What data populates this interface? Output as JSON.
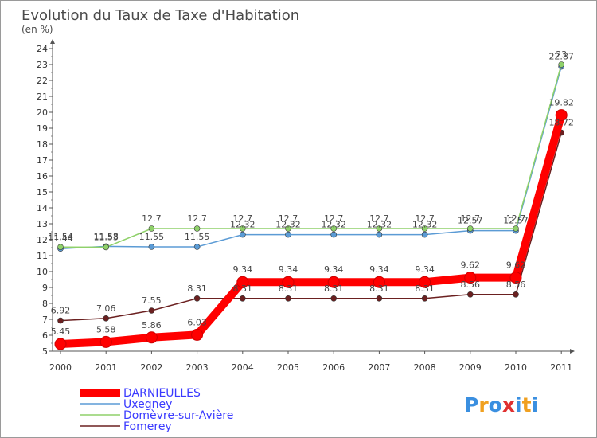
{
  "chart_data": {
    "type": "line",
    "title": "Evolution du Taux de Taxe d'Habitation",
    "subtitle": "(en %)",
    "xlabel": "",
    "ylabel": "",
    "ylim": [
      5,
      24
    ],
    "yticks": [
      5,
      6,
      7,
      8,
      9,
      10,
      11,
      12,
      13,
      14,
      15,
      16,
      17,
      18,
      19,
      20,
      21,
      22,
      23,
      24
    ],
    "grid": false,
    "legend_position": "bottom-left",
    "x": [
      "2000",
      "2001",
      "2002",
      "2003",
      "2004",
      "2005",
      "2006",
      "2007",
      "2008",
      "2009",
      "2010",
      "2011"
    ],
    "series": [
      {
        "name": "Fomerey",
        "color": "#6b2020",
        "values": [
          6.92,
          7.06,
          7.55,
          8.31,
          8.31,
          8.31,
          8.31,
          8.31,
          8.31,
          8.56,
          8.56,
          18.72
        ],
        "labels": [
          "6.92",
          "7.06",
          "7.55",
          "8.31",
          "8.31",
          "8.31",
          "8.31",
          "8.31",
          "8.31",
          "8.56",
          "8.56",
          "18.72"
        ]
      },
      {
        "name": "Uxegney",
        "color": "#5b9bd5",
        "values": [
          11.44,
          11.58,
          11.55,
          11.55,
          12.32,
          12.32,
          12.32,
          12.32,
          12.32,
          12.57,
          12.57,
          22.87
        ],
        "labels": [
          "11.44",
          "11.58",
          "11.55",
          "11.55",
          "12.32",
          "12.32",
          "12.32",
          "12.32",
          "12.32",
          "12.57",
          "12.57",
          "22.87"
        ]
      },
      {
        "name": "Domèvre-sur-Avière",
        "color": "#8fd16a",
        "values": [
          11.54,
          11.53,
          12.7,
          12.7,
          12.7,
          12.7,
          12.7,
          12.7,
          12.7,
          12.7,
          12.7,
          23.0
        ],
        "labels": [
          "11.54",
          "11.53",
          "12.7",
          "12.7",
          "12.7",
          "12.7",
          "12.7",
          "12.7",
          "12.7",
          "12.7",
          "12.7",
          "23"
        ]
      },
      {
        "name": "DARNIEULLES",
        "color": "#ff0000",
        "values": [
          5.45,
          5.58,
          5.86,
          6.03,
          9.34,
          9.34,
          9.34,
          9.34,
          9.34,
          9.62,
          9.62,
          19.82
        ],
        "labels": [
          "5.45",
          "5.58",
          "5.86",
          "6.03",
          "9.34",
          "9.34",
          "9.34",
          "9.34",
          "9.34",
          "9.62",
          "9.62",
          "19.82"
        ]
      }
    ],
    "legend": [
      "DARNIEULLES",
      "Uxegney",
      "Domèvre-sur-Avière",
      "Fomerey"
    ]
  },
  "branding": {
    "logo_letters": [
      "P",
      "r",
      "o",
      "x",
      "i",
      "t",
      "i"
    ],
    "logo_colors": [
      "#3a8fe0",
      "#f0a020",
      "#3a8fe0",
      "#e03030",
      "#3a8fe0",
      "#f0a020",
      "#3a8fe0"
    ]
  }
}
